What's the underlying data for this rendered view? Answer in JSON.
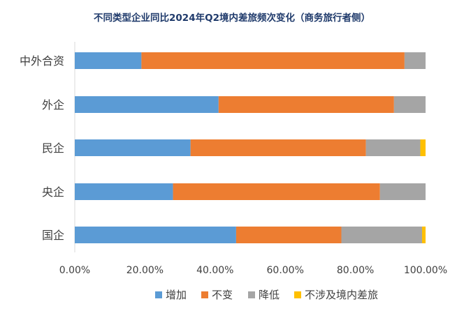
{
  "chart_data": {
    "type": "bar",
    "orientation": "horizontal",
    "stacked": true,
    "percent": true,
    "title": "不同类型企业同比2024年Q2境内差旅频次变化（商务旅行者侧）",
    "categories": [
      "中外合资",
      "外企",
      "民企",
      "央企",
      "国企"
    ],
    "series": [
      {
        "name": "增加",
        "color": "#5b9bd5",
        "values": [
          0.19,
          0.41,
          0.33,
          0.28,
          0.46
        ]
      },
      {
        "name": "不变",
        "color": "#ed7d31",
        "values": [
          0.75,
          0.5,
          0.5,
          0.59,
          0.3
        ]
      },
      {
        "name": "降低",
        "color": "#a5a5a5",
        "values": [
          0.06,
          0.09,
          0.155,
          0.13,
          0.23
        ]
      },
      {
        "name": "不涉及境内差旅",
        "color": "#ffc000",
        "values": [
          0.0,
          0.0,
          0.015,
          0.0,
          0.01
        ]
      }
    ],
    "xlim": [
      0,
      1
    ],
    "xticks": [
      "0.00%",
      "20.00%",
      "40.00%",
      "60.00%",
      "80.00%",
      "100.00%"
    ],
    "grid": false,
    "legend": "bottom"
  }
}
